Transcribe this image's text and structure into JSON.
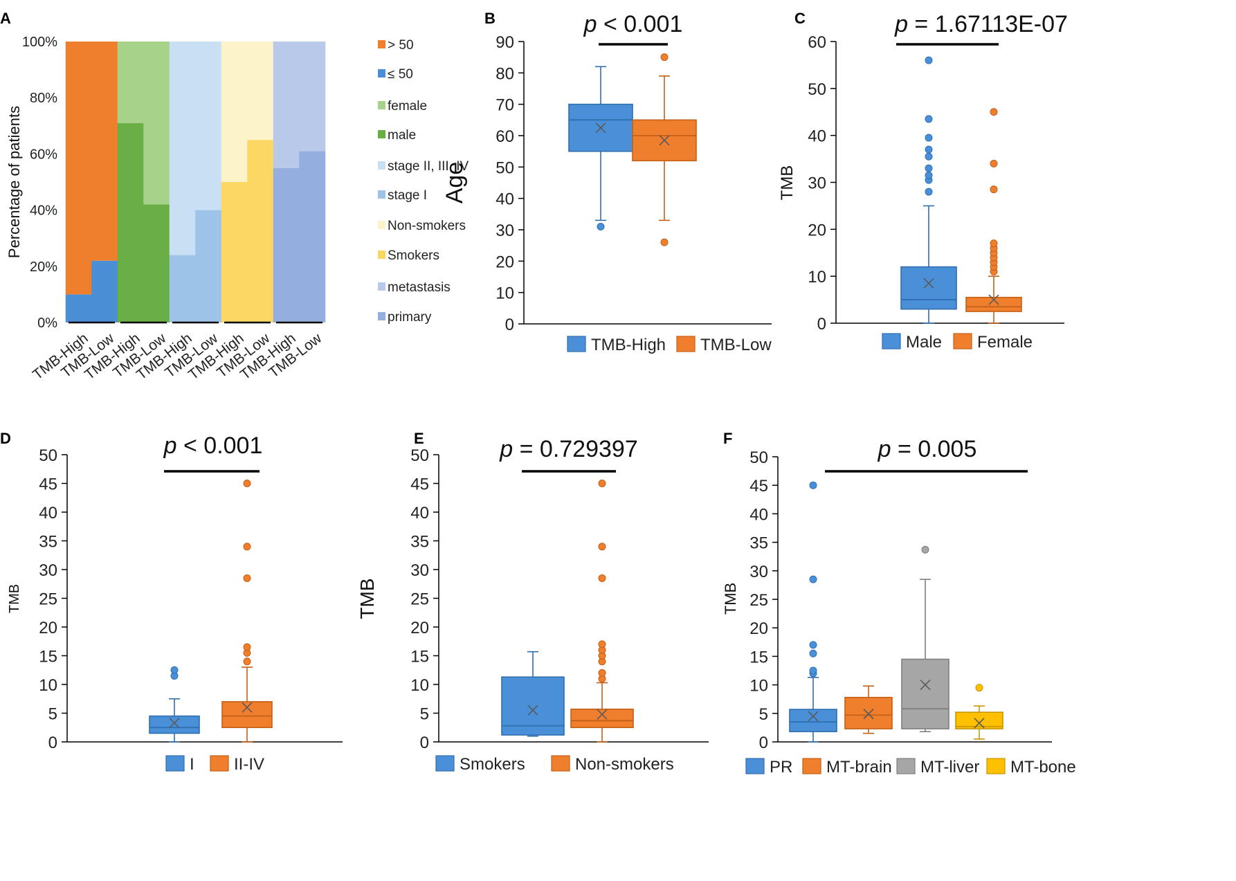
{
  "chart_data": [
    {
      "panel": "A",
      "type": "bar",
      "stacked": true,
      "ylabel": "Percentage of patients",
      "ylim": [
        0,
        100
      ],
      "y_ticks": [
        "0%",
        "20%",
        "40%",
        "60%",
        "80%",
        "100%"
      ],
      "categories": [
        "TMB-High",
        "TMB-Low",
        "TMB-High",
        "TMB-Low",
        "TMB-High",
        "TMB-Low",
        "TMB-High",
        "TMB-Low",
        "TMB-High",
        "TMB-Low"
      ],
      "bars": [
        {
          "bottom_label": "≤ 50",
          "bottom": 10,
          "top_label": "> 50",
          "bottom_color": "#4a8fd6",
          "top_color": "#ef7f2d"
        },
        {
          "bottom_label": "≤ 50",
          "bottom": 22,
          "top_label": "> 50",
          "bottom_color": "#4a8fd6",
          "top_color": "#ef7f2d"
        },
        {
          "bottom_label": "male",
          "bottom": 71,
          "top_label": "female",
          "bottom_color": "#6aaf45",
          "top_color": "#a7d28a"
        },
        {
          "bottom_label": "male",
          "bottom": 42,
          "top_label": "female",
          "bottom_color": "#6aaf45",
          "top_color": "#a7d28a"
        },
        {
          "bottom_label": "stage I",
          "bottom": 24,
          "top_label": "stage II, III, IV",
          "bottom_color": "#9dc3e8",
          "top_color": "#c9dff4"
        },
        {
          "bottom_label": "stage I",
          "bottom": 40,
          "top_label": "stage II, III, IV",
          "bottom_color": "#9dc3e8",
          "top_color": "#c9dff4"
        },
        {
          "bottom_label": "Smokers",
          "bottom": 50,
          "top_label": "Non-smokers",
          "bottom_color": "#fdd763",
          "top_color": "#fdf3c9"
        },
        {
          "bottom_label": "Smokers",
          "bottom": 65,
          "top_label": "Non-smokers",
          "bottom_color": "#fdd763",
          "top_color": "#fdf3c9"
        },
        {
          "bottom_label": "primary",
          "bottom": 55,
          "top_label": "metastasis",
          "bottom_color": "#94aee0",
          "top_color": "#b8c9ea"
        },
        {
          "bottom_label": "primary",
          "bottom": 61,
          "top_label": "metastasis",
          "bottom_color": "#94aee0",
          "top_color": "#b8c9ea"
        }
      ],
      "legend": [
        {
          "label": "> 50",
          "color": "#ef7f2d"
        },
        {
          "label": "≤ 50",
          "color": "#4a8fd6"
        },
        {
          "label": "female",
          "color": "#a7d28a"
        },
        {
          "label": "male",
          "color": "#6aaf45"
        },
        {
          "label": "stage II, III, IV",
          "color": "#c9dff4"
        },
        {
          "label": "stage I",
          "color": "#9dc3e8"
        },
        {
          "label": "Non-smokers",
          "color": "#fdf3c9"
        },
        {
          "label": "Smokers",
          "color": "#fdd763"
        },
        {
          "label": "metastasis",
          "color": "#b8c9ea"
        },
        {
          "label": "primary",
          "color": "#94aee0"
        }
      ]
    },
    {
      "panel": "B",
      "type": "box",
      "ylabel": "Age",
      "ylim": [
        0,
        90
      ],
      "y_ticks": [
        0,
        10,
        20,
        30,
        40,
        50,
        60,
        70,
        80,
        90
      ],
      "p_prefix": "p",
      "p_value": " < 0.001",
      "groups": [
        {
          "name": "TMB-High",
          "color": "#4a90d9",
          "edge": "#2f6fb0",
          "min": 33,
          "q1": 55,
          "median": 65,
          "q3": 70,
          "max": 82,
          "mean": 62.5,
          "outliers": [
            31
          ]
        },
        {
          "name": "TMB-Low",
          "color": "#ef7f2d",
          "edge": "#c45f17",
          "min": 33,
          "q1": 52,
          "median": 60,
          "q3": 65,
          "max": 79,
          "mean": 58.5,
          "outliers": [
            85,
            26
          ]
        }
      ]
    },
    {
      "panel": "C",
      "type": "box",
      "ylabel": "TMB",
      "ylim": [
        0,
        60
      ],
      "y_ticks": [
        0,
        10,
        20,
        30,
        40,
        50,
        60
      ],
      "p_prefix": "p",
      "p_value": " = 1.67113E-07",
      "groups": [
        {
          "name": "Male",
          "color": "#4a90d9",
          "edge": "#2f6fb0",
          "min": 0,
          "q1": 3,
          "median": 5,
          "q3": 12,
          "max": 25,
          "mean": 8.5,
          "outliers": [
            28,
            30.5,
            31.5,
            33,
            35.5,
            37,
            39.5,
            43.5,
            56
          ]
        },
        {
          "name": "Female",
          "color": "#ef7f2d",
          "edge": "#c45f17",
          "min": 0,
          "q1": 2.5,
          "median": 3.5,
          "q3": 5.5,
          "max": 10,
          "mean": 5,
          "outliers": [
            11,
            12,
            13,
            14,
            15,
            16,
            17,
            28.5,
            34,
            45
          ]
        }
      ]
    },
    {
      "panel": "D",
      "type": "box",
      "ylabel": "TMB",
      "ylim": [
        0,
        50
      ],
      "y_ticks": [
        0,
        5,
        10,
        15,
        20,
        25,
        30,
        35,
        40,
        45,
        50
      ],
      "p_prefix": "p",
      "p_value": " < 0.001",
      "groups": [
        {
          "name": "I",
          "color": "#4a90d9",
          "edge": "#2f6fb0",
          "min": 0,
          "q1": 1.5,
          "median": 2.5,
          "q3": 4.5,
          "max": 7.5,
          "mean": 3.3,
          "outliers": [
            11.5,
            12.5
          ]
        },
        {
          "name": "II-IV",
          "color": "#ef7f2d",
          "edge": "#c45f17",
          "min": 0,
          "q1": 2.5,
          "median": 4.5,
          "q3": 7,
          "max": 13,
          "mean": 6,
          "outliers": [
            14,
            15.5,
            16.5,
            28.5,
            34,
            45
          ]
        }
      ]
    },
    {
      "panel": "E",
      "type": "box",
      "ylabel": "TMB",
      "ylim": [
        0,
        50
      ],
      "y_ticks": [
        0,
        5,
        10,
        15,
        20,
        25,
        30,
        35,
        40,
        45,
        50
      ],
      "p_prefix": "p",
      "p_value": " = 0.729397",
      "groups": [
        {
          "name": "Smokers",
          "color": "#4a90d9",
          "edge": "#2f6fb0",
          "min": 1,
          "q1": 1.2,
          "median": 2.8,
          "q3": 11.3,
          "max": 15.7,
          "mean": 5.5,
          "outliers": []
        },
        {
          "name": "Non-smokers",
          "color": "#ef7f2d",
          "edge": "#c45f17",
          "min": 0,
          "q1": 2.5,
          "median": 3.7,
          "q3": 5.7,
          "max": 10.3,
          "mean": 4.8,
          "outliers": [
            11,
            12,
            14,
            15,
            16,
            17,
            28.5,
            34,
            45
          ]
        }
      ]
    },
    {
      "panel": "F",
      "type": "box",
      "ylabel": "TMB",
      "ylim": [
        0,
        50
      ],
      "y_ticks": [
        0,
        5,
        10,
        15,
        20,
        25,
        30,
        35,
        40,
        45,
        50
      ],
      "p_prefix": "p",
      "p_value": " = 0.005",
      "groups": [
        {
          "name": "PR",
          "color": "#4a90d9",
          "edge": "#2f6fb0",
          "min": 0,
          "q1": 1.8,
          "median": 3.5,
          "q3": 5.7,
          "max": 11.3,
          "mean": 4.5,
          "outliers": [
            12,
            12.5,
            15.5,
            17,
            28.5,
            45
          ]
        },
        {
          "name": "MT-brain",
          "color": "#ef7f2d",
          "edge": "#c45f17",
          "min": 1.5,
          "q1": 2.3,
          "median": 4.7,
          "q3": 7.8,
          "max": 9.8,
          "mean": 4.9,
          "outliers": []
        },
        {
          "name": "MT-liver",
          "color": "#a6a6a6",
          "edge": "#7f7f7f",
          "min": 1.8,
          "q1": 2.3,
          "median": 5.8,
          "q3": 14.5,
          "max": 28.5,
          "mean": 10,
          "outliers": [
            33.7
          ]
        },
        {
          "name": "MT-bone",
          "color": "#ffc000",
          "edge": "#c99600",
          "min": 0.5,
          "q1": 2.3,
          "median": 2.7,
          "q3": 5.2,
          "max": 6.3,
          "mean": 3.3,
          "outliers": [
            9.5
          ]
        }
      ]
    }
  ]
}
